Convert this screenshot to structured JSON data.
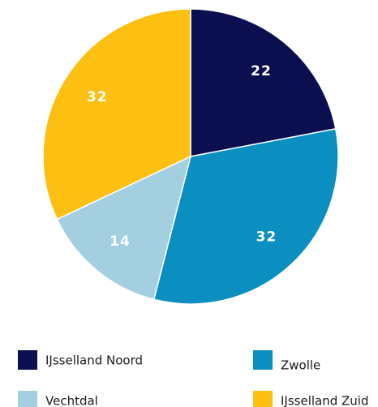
{
  "chart_data": {
    "type": "pie",
    "categories": [
      "IJsselland Noord",
      "Zwolle",
      "Vechtdal",
      "IJsselland Zuid"
    ],
    "values": [
      22,
      32,
      14,
      32
    ],
    "colors": [
      "#0c0f4f",
      "#0a8fc0",
      "#a3cfe0",
      "#fdbf12"
    ],
    "legend": "bottom"
  }
}
